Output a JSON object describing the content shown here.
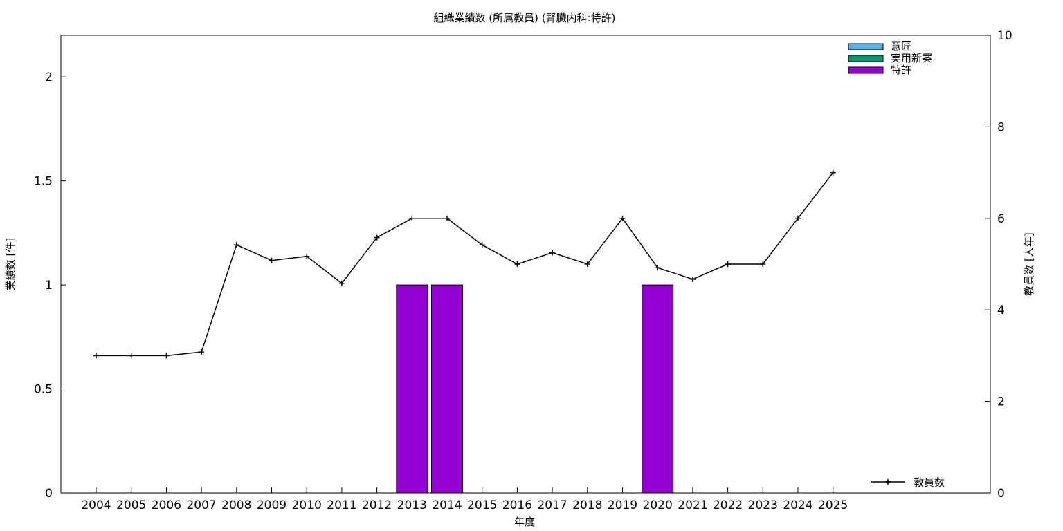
{
  "chart_data": {
    "type": "bar",
    "title": "組織業績数 (所属教員) (腎臓内科:特許)",
    "xlabel": "年度",
    "ylabel": "業績数 [件]",
    "y2label": "教員数 [人年]",
    "categories": [
      "2004",
      "2005",
      "2006",
      "2007",
      "2008",
      "2009",
      "2010",
      "2011",
      "2012",
      "2013",
      "2014",
      "2015",
      "2016",
      "2017",
      "2018",
      "2019",
      "2020",
      "2021",
      "2022",
      "2023",
      "2024",
      "2025"
    ],
    "ylim": [
      0,
      2.2
    ],
    "yticks": [
      "0",
      "0.5",
      "1",
      "1.5",
      "2"
    ],
    "y2lim": [
      0,
      10
    ],
    "y2ticks": [
      "0",
      "2",
      "4",
      "6",
      "8",
      "10"
    ],
    "grid": false,
    "legend_position": "top-right",
    "series": [
      {
        "name": "意匠",
        "axis": "left",
        "kind": "bar",
        "color": "#56b4e9",
        "values": [
          0,
          0,
          0,
          0,
          0,
          0,
          0,
          0,
          0,
          0,
          0,
          0,
          0,
          0,
          0,
          0,
          0,
          0,
          0,
          0,
          0,
          0
        ]
      },
      {
        "name": "実用新案",
        "axis": "left",
        "kind": "bar",
        "color": "#009e73",
        "values": [
          0,
          0,
          0,
          0,
          0,
          0,
          0,
          0,
          0,
          0,
          0,
          0,
          0,
          0,
          0,
          0,
          0,
          0,
          0,
          0,
          0,
          0
        ]
      },
      {
        "name": "特許",
        "axis": "left",
        "kind": "bar",
        "color": "#9400d3",
        "values": [
          0,
          0,
          0,
          0,
          0,
          0,
          0,
          0,
          0,
          1,
          1,
          0,
          0,
          0,
          0,
          0,
          1,
          0,
          0,
          0,
          0,
          0
        ]
      }
    ],
    "line_series": {
      "name": "教員数",
      "axis": "right",
      "kind": "line",
      "color": "#000000",
      "values": [
        3.0,
        3.0,
        3.0,
        3.08,
        5.42,
        5.08,
        5.17,
        4.58,
        5.58,
        6.0,
        6.0,
        5.42,
        5.0,
        5.25,
        5.0,
        6.0,
        4.92,
        4.67,
        5.0,
        5.0,
        6.0,
        7.0
      ]
    }
  }
}
